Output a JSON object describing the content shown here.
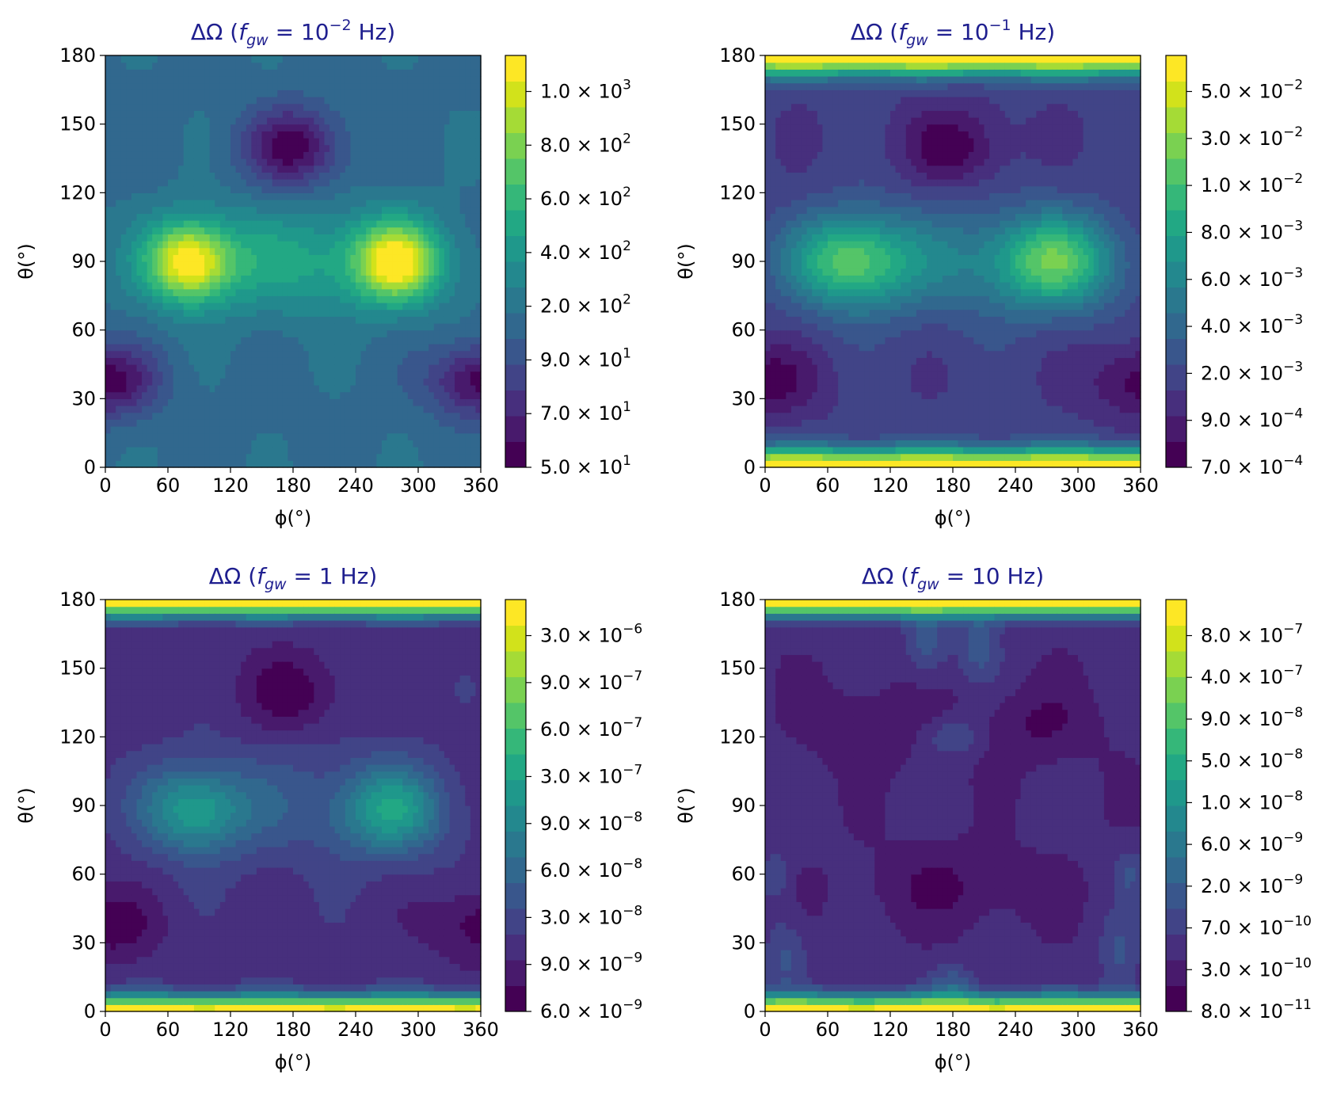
{
  "colors": {
    "title": "#1f1f8f",
    "axis": "#000000",
    "viridis": [
      "#440154",
      "#481a6c",
      "#472f7d",
      "#414487",
      "#39568c",
      "#31688e",
      "#2a788e",
      "#23888e",
      "#1f988b",
      "#22a884",
      "#35b779",
      "#54c568",
      "#7ad151",
      "#a5db36",
      "#d2e21b",
      "#fde725"
    ]
  },
  "chart_data": [
    {
      "type": "heatmap",
      "title": "ΔΩ (f_gw = 10⁻² Hz)",
      "title_parts": {
        "prefix": "ΔΩ (",
        "symbol": "f",
        "subscript": "gw",
        "middle": " = 10",
        "superscript": "−2",
        "suffix": " Hz)"
      },
      "xlabel": "ϕ(°)",
      "ylabel": "θ(°)",
      "xlim": [
        0,
        360
      ],
      "ylim": [
        0,
        180
      ],
      "xticks": [
        0,
        60,
        120,
        180,
        240,
        300,
        360
      ],
      "yticks": [
        0,
        30,
        60,
        90,
        120,
        150,
        180
      ],
      "colorbar_ticks": [
        {
          "mantissa": "5.0",
          "exponent": "1"
        },
        {
          "mantissa": "7.0",
          "exponent": "1"
        },
        {
          "mantissa": "9.0",
          "exponent": "1"
        },
        {
          "mantissa": "2.0",
          "exponent": "2"
        },
        {
          "mantissa": "4.0",
          "exponent": "2"
        },
        {
          "mantissa": "6.0",
          "exponent": "2"
        },
        {
          "mantissa": "8.0",
          "exponent": "2"
        },
        {
          "mantissa": "1.0",
          "exponent": "3"
        }
      ],
      "levels": 16,
      "field": {
        "base": 0.36,
        "bands": [
          {
            "center": 4,
            "width": 4,
            "amp": 0.0
          }
        ],
        "blobs": [
          {
            "phi": 80,
            "theta": 90,
            "sphi": 28,
            "stheta": 12,
            "amp": 0.56
          },
          {
            "phi": 280,
            "theta": 90,
            "sphi": 28,
            "stheta": 12,
            "amp": 0.56
          },
          {
            "phi": 180,
            "theta": 90,
            "sphi": 90,
            "stheta": 16,
            "amp": 0.22
          },
          {
            "phi": 180,
            "theta": 140,
            "sphi": 32,
            "stheta": 12,
            "amp": -0.34
          },
          {
            "phi": 0,
            "theta": 38,
            "sphi": 34,
            "stheta": 11,
            "amp": -0.34
          },
          {
            "phi": 360,
            "theta": 38,
            "sphi": 34,
            "stheta": 11,
            "amp": -0.34
          }
        ]
      }
    },
    {
      "type": "heatmap",
      "title": "ΔΩ (f_gw = 10⁻¹ Hz)",
      "title_parts": {
        "prefix": "ΔΩ (",
        "symbol": "f",
        "subscript": "gw",
        "middle": " = 10",
        "superscript": "−1",
        "suffix": " Hz)"
      },
      "xlabel": "ϕ(°)",
      "ylabel": "θ(°)",
      "xlim": [
        0,
        360
      ],
      "ylim": [
        0,
        180
      ],
      "xticks": [
        0,
        60,
        120,
        180,
        240,
        300,
        360
      ],
      "yticks": [
        0,
        30,
        60,
        90,
        120,
        150,
        180
      ],
      "colorbar_ticks": [
        {
          "mantissa": "7.0",
          "exponent": "−4"
        },
        {
          "mantissa": "9.0",
          "exponent": "−4"
        },
        {
          "mantissa": "2.0",
          "exponent": "−3"
        },
        {
          "mantissa": "4.0",
          "exponent": "−3"
        },
        {
          "mantissa": "6.0",
          "exponent": "−3"
        },
        {
          "mantissa": "8.0",
          "exponent": "−3"
        },
        {
          "mantissa": "1.0",
          "exponent": "−2"
        },
        {
          "mantissa": "3.0",
          "exponent": "−2"
        },
        {
          "mantissa": "5.0",
          "exponent": "−2"
        }
      ],
      "levels": 16,
      "field": {
        "base": 0.2,
        "bands": [
          {
            "center": 0,
            "width": 6,
            "amp": 0.8
          },
          {
            "center": 180,
            "width": 6,
            "amp": 0.8
          }
        ],
        "blobs": [
          {
            "phi": 80,
            "theta": 90,
            "sphi": 40,
            "stheta": 14,
            "amp": 0.44
          },
          {
            "phi": 280,
            "theta": 90,
            "sphi": 40,
            "stheta": 14,
            "amp": 0.44
          },
          {
            "phi": 180,
            "theta": 90,
            "sphi": 90,
            "stheta": 18,
            "amp": 0.2
          },
          {
            "phi": 180,
            "theta": 140,
            "sphi": 34,
            "stheta": 12,
            "amp": -0.18
          },
          {
            "phi": 0,
            "theta": 38,
            "sphi": 34,
            "stheta": 11,
            "amp": -0.18
          },
          {
            "phi": 360,
            "theta": 38,
            "sphi": 34,
            "stheta": 11,
            "amp": -0.18
          }
        ]
      }
    },
    {
      "type": "heatmap",
      "title": "ΔΩ (f_gw = 1 Hz)",
      "title_parts": {
        "prefix": "ΔΩ (",
        "symbol": "f",
        "subscript": "gw",
        "middle": " = 1",
        "superscript": "",
        "suffix": " Hz)"
      },
      "xlabel": "ϕ(°)",
      "ylabel": "θ(°)",
      "xlim": [
        0,
        360
      ],
      "ylim": [
        0,
        180
      ],
      "xticks": [
        0,
        60,
        120,
        180,
        240,
        300,
        360
      ],
      "yticks": [
        0,
        30,
        60,
        90,
        120,
        150,
        180
      ],
      "colorbar_ticks": [
        {
          "mantissa": "6.0",
          "exponent": "−9"
        },
        {
          "mantissa": "9.0",
          "exponent": "−9"
        },
        {
          "mantissa": "3.0",
          "exponent": "−8"
        },
        {
          "mantissa": "6.0",
          "exponent": "−8"
        },
        {
          "mantissa": "9.0",
          "exponent": "−8"
        },
        {
          "mantissa": "3.0",
          "exponent": "−7"
        },
        {
          "mantissa": "6.0",
          "exponent": "−7"
        },
        {
          "mantissa": "9.0",
          "exponent": "−7"
        },
        {
          "mantissa": "3.0",
          "exponent": "−6"
        }
      ],
      "levels": 16,
      "field": {
        "base": 0.16,
        "bands": [
          {
            "center": 0,
            "width": 5,
            "amp": 0.84
          },
          {
            "center": 180,
            "width": 5,
            "amp": 0.84
          }
        ],
        "blobs": [
          {
            "phi": 85,
            "theta": 88,
            "sphi": 34,
            "stheta": 13,
            "amp": 0.34
          },
          {
            "phi": 275,
            "theta": 88,
            "sphi": 34,
            "stheta": 13,
            "amp": 0.34
          },
          {
            "phi": 180,
            "theta": 90,
            "sphi": 90,
            "stheta": 18,
            "amp": 0.12
          },
          {
            "phi": 180,
            "theta": 140,
            "sphi": 34,
            "stheta": 12,
            "amp": -0.14
          },
          {
            "phi": 0,
            "theta": 38,
            "sphi": 34,
            "stheta": 11,
            "amp": -0.14
          },
          {
            "phi": 360,
            "theta": 38,
            "sphi": 34,
            "stheta": 11,
            "amp": -0.14
          }
        ]
      }
    },
    {
      "type": "heatmap",
      "title": "ΔΩ (f_gw = 10 Hz)",
      "title_parts": {
        "prefix": "ΔΩ (",
        "symbol": "f",
        "subscript": "gw",
        "middle": " = 10",
        "superscript": "",
        "suffix": " Hz)"
      },
      "xlabel": "ϕ(°)",
      "ylabel": "θ(°)",
      "xlim": [
        0,
        360
      ],
      "ylim": [
        0,
        180
      ],
      "xticks": [
        0,
        60,
        120,
        180,
        240,
        300,
        360
      ],
      "yticks": [
        0,
        30,
        60,
        90,
        120,
        150,
        180
      ],
      "colorbar_ticks": [
        {
          "mantissa": "8.0",
          "exponent": "−11"
        },
        {
          "mantissa": "3.0",
          "exponent": "−10"
        },
        {
          "mantissa": "7.0",
          "exponent": "−10"
        },
        {
          "mantissa": "2.0",
          "exponent": "−9"
        },
        {
          "mantissa": "6.0",
          "exponent": "−9"
        },
        {
          "mantissa": "1.0",
          "exponent": "−8"
        },
        {
          "mantissa": "5.0",
          "exponent": "−8"
        },
        {
          "mantissa": "9.0",
          "exponent": "−8"
        },
        {
          "mantissa": "4.0",
          "exponent": "−7"
        },
        {
          "mantissa": "8.0",
          "exponent": "−7"
        }
      ],
      "levels": 16,
      "field": {
        "base": 0.14,
        "bands": [
          {
            "center": 0,
            "width": 5,
            "amp": 0.86
          },
          {
            "center": 180,
            "width": 5,
            "amp": 0.86
          }
        ],
        "blobs": [
          {
            "phi": 180,
            "theta": 120,
            "sphi": 20,
            "stheta": 6,
            "amp": 0.12
          },
          {
            "phi": 155,
            "theta": 160,
            "sphi": 14,
            "stheta": 10,
            "amp": 0.14
          },
          {
            "phi": 205,
            "theta": 160,
            "sphi": 14,
            "stheta": 10,
            "amp": 0.14
          },
          {
            "phi": 20,
            "theta": 25,
            "sphi": 14,
            "stheta": 12,
            "amp": 0.12
          },
          {
            "phi": 340,
            "theta": 25,
            "sphi": 14,
            "stheta": 12,
            "amp": 0.12
          },
          {
            "phi": 180,
            "theta": 12,
            "sphi": 16,
            "stheta": 6,
            "amp": 0.14
          },
          {
            "phi": 10,
            "theta": 60,
            "sphi": 10,
            "stheta": 8,
            "amp": 0.1
          },
          {
            "phi": 350,
            "theta": 60,
            "sphi": 10,
            "stheta": 8,
            "amp": 0.1
          },
          {
            "phi": 100,
            "theta": 125,
            "sphi": 40,
            "stheta": 12,
            "amp": -0.08
          },
          {
            "phi": 260,
            "theta": 125,
            "sphi": 40,
            "stheta": 12,
            "amp": -0.08
          },
          {
            "phi": 180,
            "theta": 55,
            "sphi": 60,
            "stheta": 12,
            "amp": -0.08
          }
        ]
      }
    }
  ]
}
